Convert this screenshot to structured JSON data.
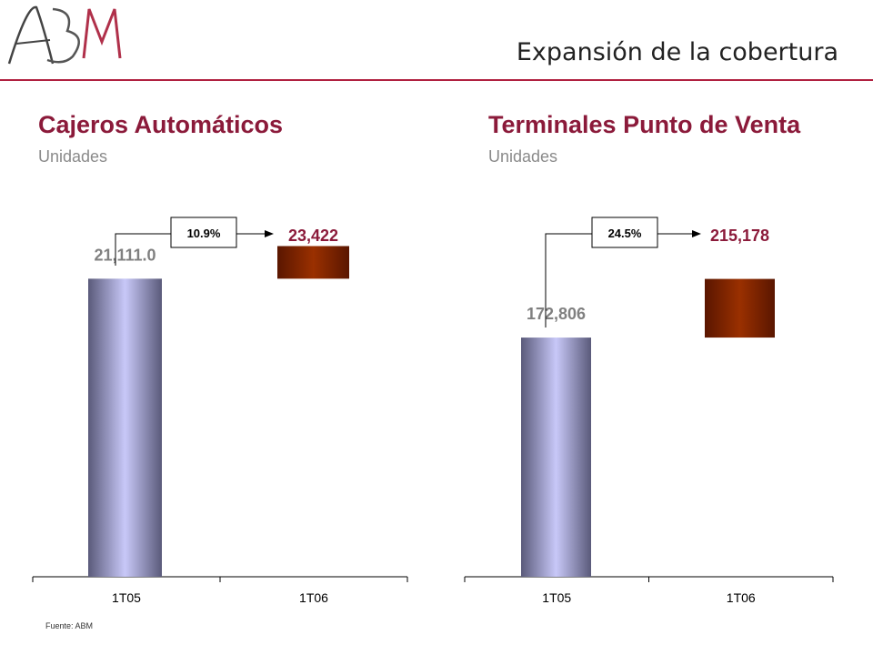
{
  "logo": {
    "text": "ABM"
  },
  "header": {
    "title": "Expansión de la cobertura"
  },
  "colors": {
    "accent": "#8b1a3a",
    "bar_1T05": "#c8c8f8",
    "bar_1T06": "#9a3000",
    "value_label_1T05": "#808080",
    "value_label_1T06": "#8b1a3a"
  },
  "charts": [
    {
      "title": "Cajeros Automáticos",
      "subtitle": "Unidades"
    },
    {
      "title": "Terminales Punto de Venta",
      "subtitle": "Unidades"
    }
  ],
  "chart_data": [
    {
      "type": "bar",
      "title": "Cajeros Automáticos",
      "subtitle": "Unidades",
      "categories": [
        "1T05",
        "1T06"
      ],
      "values": [
        21111.0,
        23422
      ],
      "value_labels": [
        "21,111.0",
        "23,422"
      ],
      "growth_label": "10.9%",
      "xlabel": "",
      "ylabel": "",
      "ylim": [
        0,
        25000
      ]
    },
    {
      "type": "bar",
      "title": "Terminales Punto de Venta",
      "subtitle": "Unidades",
      "categories": [
        "1T05",
        "1T06"
      ],
      "values": [
        172806,
        215178
      ],
      "value_labels": [
        "172,806",
        "215,178"
      ],
      "growth_label": "24.5%",
      "xlabel": "",
      "ylabel": "",
      "ylim": [
        0,
        255000
      ]
    }
  ],
  "footer": {
    "source": "Fuente: ABM"
  }
}
